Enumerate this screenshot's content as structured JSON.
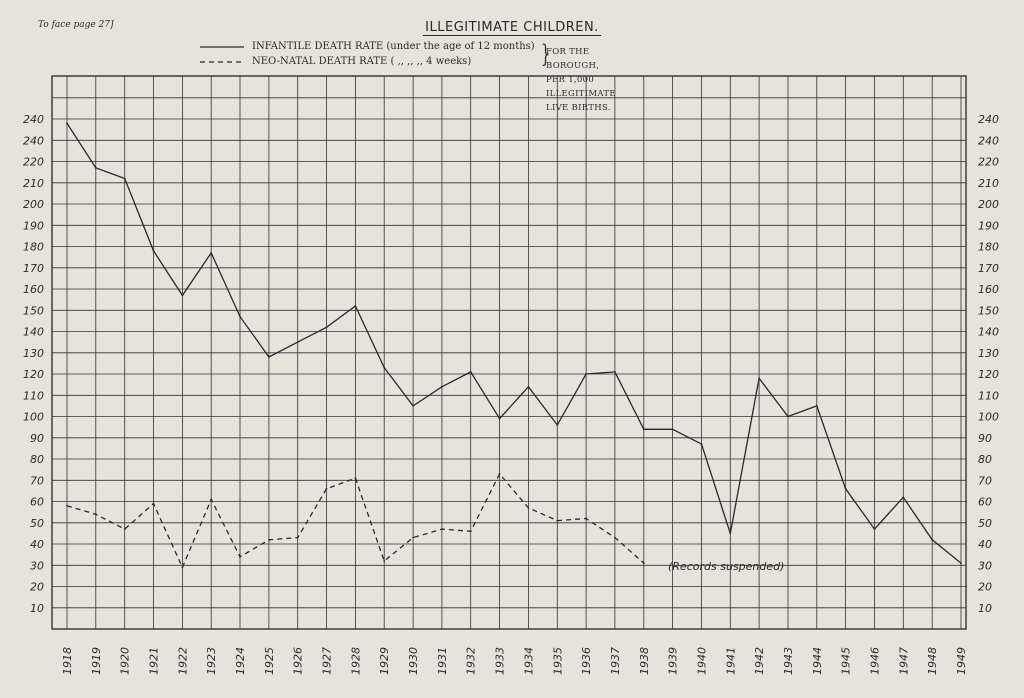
{
  "page_note": "To face page 27]",
  "chart_data": {
    "type": "line",
    "title": "ILLEGITIMATE CHILDREN.",
    "legend": {
      "series_1_label": "INFANTILE DEATH RATE (under the age of 12 months)",
      "series_2_label": "NEO-NATAL DEATH RATE (   ,,      ,,      ,,     4 weeks)",
      "qualifier": "FOR THE BOROUGH, PER 1,000 ILLEGITIMATE LIVE BIRTHS."
    },
    "categories": [
      "1918",
      "1919",
      "1920",
      "1921",
      "1922",
      "1923",
      "1924",
      "1925",
      "1926",
      "1927",
      "1928",
      "1929",
      "1930",
      "1931",
      "1932",
      "1933",
      "1934",
      "1935",
      "1936",
      "1937",
      "1938",
      "1939",
      "1940",
      "1941",
      "1942",
      "1943",
      "1944",
      "1945",
      "1946",
      "1947",
      "1948",
      "1949"
    ],
    "y_tick_labels": [
      "10",
      "20",
      "30",
      "40",
      "50",
      "60",
      "70",
      "80",
      "90",
      "100",
      "110",
      "120",
      "130",
      "140",
      "150",
      "160",
      "170",
      "180",
      "190",
      "200",
      "210",
      "220",
      "240",
      "240"
    ],
    "ylim": [
      0,
      250
    ],
    "grid": true,
    "series": [
      {
        "name": "INFANTILE DEATH RATE",
        "line_style": "solid",
        "values": [
          238,
          217,
          212,
          178,
          157,
          177,
          147,
          128,
          135,
          142,
          152,
          123,
          105,
          114,
          121,
          99,
          114,
          96,
          120,
          121,
          94,
          94,
          87,
          45,
          118,
          100,
          105,
          66,
          47,
          62,
          42,
          31
        ]
      },
      {
        "name": "NEO-NATAL DEATH RATE",
        "line_style": "dashed",
        "values": [
          58,
          54,
          47,
          59,
          29,
          61,
          34,
          42,
          43,
          66,
          71,
          32,
          43,
          47,
          46,
          73,
          57,
          51,
          52,
          43,
          31,
          null,
          null,
          null,
          null,
          null,
          null,
          null,
          null,
          null,
          null,
          null
        ]
      }
    ],
    "annotation": "(Records suspended)",
    "colors": {
      "line": "#2a2a2a",
      "grid": "#333333",
      "paper": "#e6e3da"
    }
  }
}
